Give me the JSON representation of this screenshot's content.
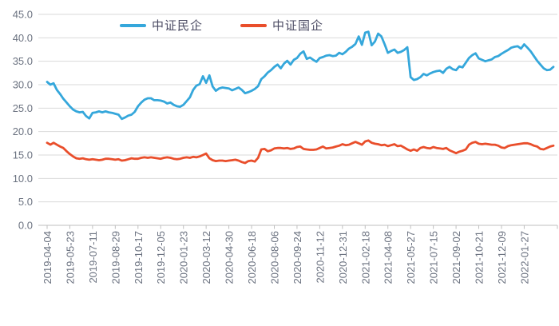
{
  "chart_data": {
    "type": "line",
    "title": "",
    "xlabel": "",
    "ylabel": "",
    "ylim": [
      0,
      45
    ],
    "y_tick_step": 5.0,
    "y_ticks": [
      "0.0",
      "5.0",
      "10.0",
      "15.0",
      "20.0",
      "25.0",
      "30.0",
      "35.0",
      "40.0",
      "45.0"
    ],
    "grid": "horizontal",
    "legend_position": "top",
    "label_every": 7,
    "x_labels": [
      "2019-04-04",
      "2019-05-23",
      "2019-07-11",
      "2019-08-29",
      "2019-10-17",
      "2019-12-05",
      "2020-01-23",
      "2020-03-12",
      "2020-04-30",
      "2020-06-18",
      "2020-08-06",
      "2020-09-24",
      "2020-11-12",
      "2020-12-31",
      "2021-02-18",
      "2021-04-08",
      "2021-05-27",
      "2021-07-15",
      "2021-09-02",
      "2021-10-21",
      "2021-12-09",
      "2022-01-27"
    ],
    "series": [
      {
        "name": "中证民企",
        "color": "#35A7DB",
        "values": [
          30.6,
          30.0,
          30.3,
          28.9,
          28.0,
          27.0,
          26.2,
          25.4,
          24.7,
          24.3,
          24.1,
          24.2,
          23.3,
          22.8,
          24.0,
          24.1,
          24.3,
          24.1,
          24.3,
          24.1,
          24.0,
          23.8,
          23.6,
          22.7,
          23.0,
          23.4,
          23.6,
          24.2,
          25.4,
          26.2,
          26.8,
          27.1,
          27.1,
          26.7,
          26.7,
          26.6,
          26.4,
          26.0,
          26.2,
          25.7,
          25.4,
          25.3,
          25.7,
          26.5,
          27.3,
          28.9,
          29.8,
          30.1,
          31.8,
          30.4,
          32.0,
          29.6,
          28.7,
          29.2,
          29.4,
          29.3,
          29.2,
          28.8,
          29.1,
          29.4,
          28.9,
          28.2,
          28.4,
          28.7,
          29.1,
          29.7,
          31.2,
          31.8,
          32.6,
          33.1,
          33.8,
          34.3,
          33.5,
          34.5,
          35.1,
          34.3,
          35.3,
          35.7,
          36.6,
          37.1,
          35.5,
          35.8,
          35.3,
          34.9,
          35.7,
          35.9,
          36.2,
          36.3,
          36.1,
          36.2,
          36.8,
          36.5,
          37.0,
          37.7,
          38.1,
          38.7,
          40.3,
          38.5,
          41.1,
          41.3,
          38.4,
          39.2,
          40.9,
          40.3,
          38.6,
          36.8,
          37.2,
          37.5,
          36.8,
          37.0,
          37.4,
          38.0,
          31.6,
          31.0,
          31.2,
          31.6,
          32.3,
          32.0,
          32.4,
          32.7,
          32.9,
          33.0,
          32.5,
          33.4,
          33.8,
          33.3,
          33.1,
          33.9,
          33.7,
          34.7,
          35.7,
          36.3,
          36.7,
          35.6,
          35.3,
          35.0,
          35.2,
          35.4,
          35.9,
          36.1,
          36.6,
          37.0,
          37.4,
          37.9,
          38.1,
          38.2,
          37.7,
          38.6,
          37.9,
          37.1,
          36.1,
          35.1,
          34.3,
          33.5,
          33.1,
          33.2,
          33.8
        ]
      },
      {
        "name": "中证国企",
        "color": "#E94E2B",
        "values": [
          17.6,
          17.2,
          17.6,
          17.2,
          16.8,
          16.5,
          15.8,
          15.2,
          14.7,
          14.3,
          14.2,
          14.3,
          14.1,
          14.0,
          14.1,
          14.0,
          13.9,
          14.0,
          14.2,
          14.2,
          14.1,
          14.0,
          14.1,
          13.8,
          13.9,
          14.1,
          14.3,
          14.2,
          14.2,
          14.4,
          14.5,
          14.4,
          14.5,
          14.4,
          14.3,
          14.2,
          14.4,
          14.5,
          14.4,
          14.2,
          14.1,
          14.2,
          14.4,
          14.5,
          14.4,
          14.6,
          14.5,
          14.7,
          15.0,
          15.3,
          14.3,
          13.9,
          13.7,
          13.8,
          13.8,
          13.7,
          13.8,
          13.9,
          14.0,
          13.8,
          13.5,
          13.3,
          13.7,
          13.8,
          13.6,
          14.4,
          16.2,
          16.3,
          15.8,
          16.0,
          16.4,
          16.5,
          16.5,
          16.4,
          16.5,
          16.3,
          16.4,
          16.7,
          16.8,
          16.3,
          16.2,
          16.1,
          16.1,
          16.2,
          16.5,
          16.8,
          16.4,
          16.5,
          16.6,
          16.8,
          17.0,
          17.3,
          17.1,
          17.2,
          17.5,
          17.8,
          17.5,
          17.2,
          17.9,
          18.1,
          17.6,
          17.4,
          17.3,
          17.1,
          17.2,
          16.9,
          17.1,
          17.3,
          16.9,
          17.0,
          16.6,
          16.2,
          15.9,
          16.2,
          15.9,
          16.5,
          16.7,
          16.5,
          16.4,
          16.7,
          16.5,
          16.4,
          16.3,
          16.5,
          16.0,
          15.7,
          15.4,
          15.7,
          15.9,
          16.2,
          17.2,
          17.6,
          17.8,
          17.4,
          17.3,
          17.4,
          17.3,
          17.2,
          17.2,
          17.0,
          16.6,
          16.5,
          16.9,
          17.1,
          17.2,
          17.3,
          17.4,
          17.5,
          17.5,
          17.3,
          17.0,
          16.8,
          16.3,
          16.2,
          16.5,
          16.8,
          17.0
        ]
      }
    ],
    "colors": {
      "grid": "#D9D9D9",
      "axis": "#BFBFBF",
      "tick_label": "#6B7280",
      "legend_text": "#4B4B63",
      "background": "#FFFFFF"
    }
  }
}
